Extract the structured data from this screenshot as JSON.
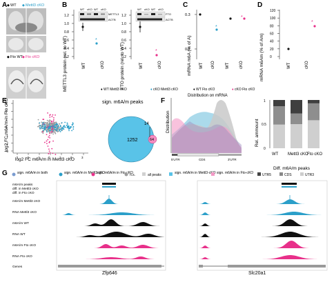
{
  "panel_letters": [
    "A",
    "B",
    "C",
    "D",
    "E",
    "F",
    "G"
  ],
  "panelA": {
    "row1": {
      "wt": "WT",
      "cko": "Mettl3 cKO"
    },
    "row2": {
      "wt": "Fto WT",
      "cko": "Fto cKO"
    }
  },
  "panelB": {
    "blot1": {
      "lanes": [
        "WT",
        "cKO",
        "WT",
        "cKO"
      ],
      "bands": [
        "METTL3",
        "ACTB"
      ]
    },
    "blot2": {
      "lanes": [
        "WT",
        "cKO",
        "WT",
        "cKO"
      ],
      "bands": [
        "FTO",
        "ACTB"
      ]
    },
    "ylabel1": "METTL3 protein (rel. to WT)",
    "ylabel2": "FTO protein (rel. to WT)",
    "ticks": [
      "0.2",
      "0.4",
      "0.6",
      "0.8",
      "1.0",
      "1.2"
    ]
  },
  "panelC": {
    "ylabel": "mRNA m6A (% of A)",
    "ticks": [
      "0.2",
      "0.3"
    ]
  },
  "panelD": {
    "ylabel": "mRNA m6Am (% of Am)",
    "ticks": [
      "0",
      "20",
      "40",
      "60",
      "80",
      "100",
      "120"
    ]
  },
  "xcat": [
    "WT",
    "cKO"
  ],
  "legend_top": [
    "WT Mettl3 cKO",
    "cKO Mettl3 cKO",
    "WT Fto cKO",
    "cKO Fto cKO"
  ],
  "colors": {
    "mettl3": "#2b9fc9",
    "fto": "#e8308a",
    "gray": "#9c9c9c",
    "dark": "#444444"
  },
  "panelE": {
    "xlabel": "log2 FC m6A/m in Mettl3 cKO",
    "ylabel": "log2 FC m6A/m in Fto cKO",
    "xticks": [
      "-3",
      "-2",
      "-1",
      "0",
      "1",
      "2",
      "3"
    ],
    "yticks": [
      "-3",
      "-2",
      "-1",
      "0",
      "1",
      "2",
      "3"
    ],
    "venn_title": "sign. m6A/m peaks",
    "venn_left": "1252",
    "venn_overlap": "14",
    "venn_right": "64"
  },
  "panelF": {
    "title": "Distribution on mRNA",
    "ylabel": "Distribution",
    "xlabels": [
      "5'UTR",
      "CDS",
      "3'UTR"
    ],
    "bar_ylabel": "Rel. ammount",
    "bar_xlabels": [
      "WT",
      "Mettl3 cKO",
      "Fto cKO"
    ],
    "bar_xtitle": "Diff. m6A/m peaks",
    "bar_ticks": [
      "0",
      "0.5",
      "1"
    ],
    "legend": [
      "all peaks",
      "sign. m6A/m in Mettl3-cKO",
      "sign. m6A/m in Fto-cKO"
    ],
    "utr_legend": [
      "UTR5",
      "CDS",
      "UTR3"
    ],
    "bars": [
      {
        "name": "WT",
        "utr5": 0.13,
        "cds": 0.38,
        "utr3": 0.49
      },
      {
        "name": "Mettl3 cKO",
        "utr5": 0.28,
        "cds": 0.22,
        "utr3": 0.5
      },
      {
        "name": "Fto cKO",
        "utr5": 0.07,
        "cds": 0.35,
        "utr3": 0.58
      }
    ]
  },
  "panelG": {
    "legend": [
      "sign. m6A/m in both",
      "sign. m6A/m in Mettl3 cKO",
      "sign. m6A/m in Fto cKO",
      "n.s."
    ],
    "track_labels": [
      "m6A/m peaks",
      "diff. in Mettl3 cKO",
      "diff. in Fto cKO",
      "m6A/m Mettl3 cKO",
      "RNA Mettl3 cKO",
      "m6A/m WT",
      "RNA WT",
      "m6A/m Fto cKO",
      "RNA Fto cKO",
      "Genes"
    ],
    "gene1": "Zfp646",
    "gene2": "Slc20a1"
  }
}
